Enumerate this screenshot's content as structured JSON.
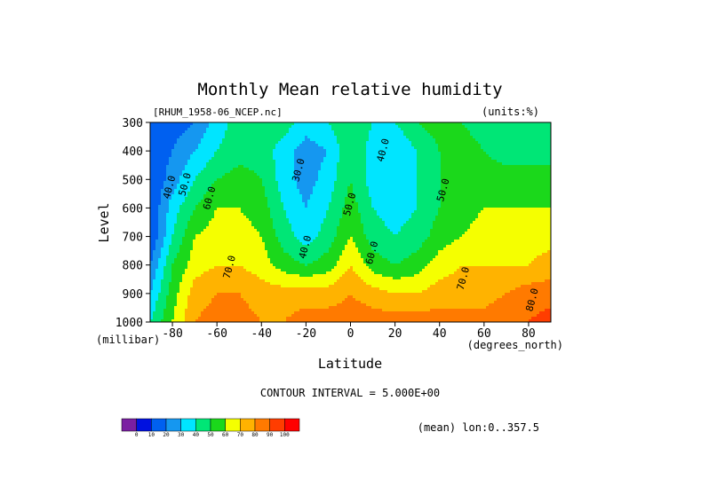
{
  "chart_data": {
    "type": "heatmap",
    "title": "Monthly Mean relative humidity",
    "subtitle_left": "[RHUM_1958-06_NCEP.nc]",
    "subtitle_right": "(units:%)",
    "xlabel": "Latitude",
    "ylabel": "Level",
    "x_unit_label": "(degrees_north)",
    "y_unit_label": "(millibar)",
    "xlim": [
      -90,
      90
    ],
    "ylim": [
      1000,
      300
    ],
    "x_ticks": [
      -80,
      -60,
      -40,
      -20,
      0,
      20,
      40,
      60,
      80
    ],
    "x_tick_labels": [
      "-80",
      "-60",
      "-40",
      "-20",
      "0",
      "20",
      "40",
      "60",
      "80"
    ],
    "y_ticks": [
      300,
      400,
      500,
      600,
      700,
      800,
      900,
      1000
    ],
    "y_tick_labels": [
      "300",
      "400",
      "500",
      "600",
      "700",
      "800",
      "900",
      "1000"
    ],
    "contour_interval_text": "CONTOUR INTERVAL = 5.000E+00",
    "footer_right": "(mean) lon:0..357.5",
    "latitudes": [
      -90,
      -80,
      -70,
      -60,
      -50,
      -40,
      -30,
      -20,
      -10,
      0,
      10,
      20,
      30,
      40,
      50,
      60,
      70,
      80,
      90
    ],
    "levels": [
      300,
      400,
      500,
      600,
      700,
      800,
      900,
      1000
    ],
    "values": [
      [
        10,
        15,
        20,
        35,
        45,
        50,
        45,
        35,
        40,
        50,
        40,
        40,
        50,
        55,
        50,
        45,
        40,
        40,
        40
      ],
      [
        12,
        20,
        30,
        40,
        45,
        45,
        35,
        25,
        30,
        50,
        35,
        30,
        40,
        50,
        55,
        50,
        45,
        45,
        45
      ],
      [
        10,
        25,
        40,
        50,
        55,
        50,
        35,
        25,
        35,
        50,
        35,
        30,
        40,
        50,
        55,
        55,
        55,
        55,
        55
      ],
      [
        10,
        35,
        50,
        60,
        60,
        55,
        40,
        30,
        40,
        55,
        40,
        35,
        40,
        50,
        55,
        60,
        60,
        60,
        60
      ],
      [
        10,
        40,
        60,
        65,
        65,
        60,
        45,
        35,
        45,
        60,
        45,
        40,
        45,
        55,
        60,
        65,
        65,
        65,
        65
      ],
      [
        20,
        50,
        65,
        70,
        70,
        65,
        55,
        50,
        55,
        70,
        55,
        50,
        55,
        65,
        70,
        70,
        70,
        70,
        75
      ],
      [
        30,
        55,
        75,
        80,
        80,
        75,
        75,
        75,
        75,
        80,
        75,
        70,
        70,
        75,
        75,
        75,
        80,
        85,
        85
      ],
      [
        40,
        60,
        80,
        85,
        85,
        80,
        80,
        85,
        85,
        85,
        85,
        85,
        85,
        85,
        85,
        85,
        90,
        90,
        95
      ]
    ],
    "contour_labels": [
      {
        "text": "30.0",
        "x": -22,
        "y": 470
      },
      {
        "text": "40.0",
        "x": -80,
        "y": 530
      },
      {
        "text": "50.0",
        "x": -73,
        "y": 520
      },
      {
        "text": "60.0",
        "x": -62,
        "y": 568
      },
      {
        "text": "40.0",
        "x": -19,
        "y": 740
      },
      {
        "text": "50.0",
        "x": 1,
        "y": 590
      },
      {
        "text": "60.0",
        "x": 11,
        "y": 760
      },
      {
        "text": "40.0",
        "x": 16,
        "y": 400
      },
      {
        "text": "50.0",
        "x": 43,
        "y": 540
      },
      {
        "text": "70.0",
        "x": -53,
        "y": 810
      },
      {
        "text": "70.0",
        "x": 52,
        "y": 850
      },
      {
        "text": "80.0",
        "x": 83,
        "y": 925
      }
    ],
    "colorbar": {
      "colors": [
        "#7b1fa2",
        "#0011e0",
        "#0060f0",
        "#1597f0",
        "#00e5ff",
        "#00e676",
        "#1bd81b",
        "#f5ff00",
        "#ffb300",
        "#ff7a00",
        "#ff3d00",
        "#ff0000"
      ],
      "tick_labels": [
        "0",
        "10",
        "20",
        "30",
        "40",
        "50",
        "60",
        "70",
        "80",
        "90",
        "100"
      ]
    }
  }
}
